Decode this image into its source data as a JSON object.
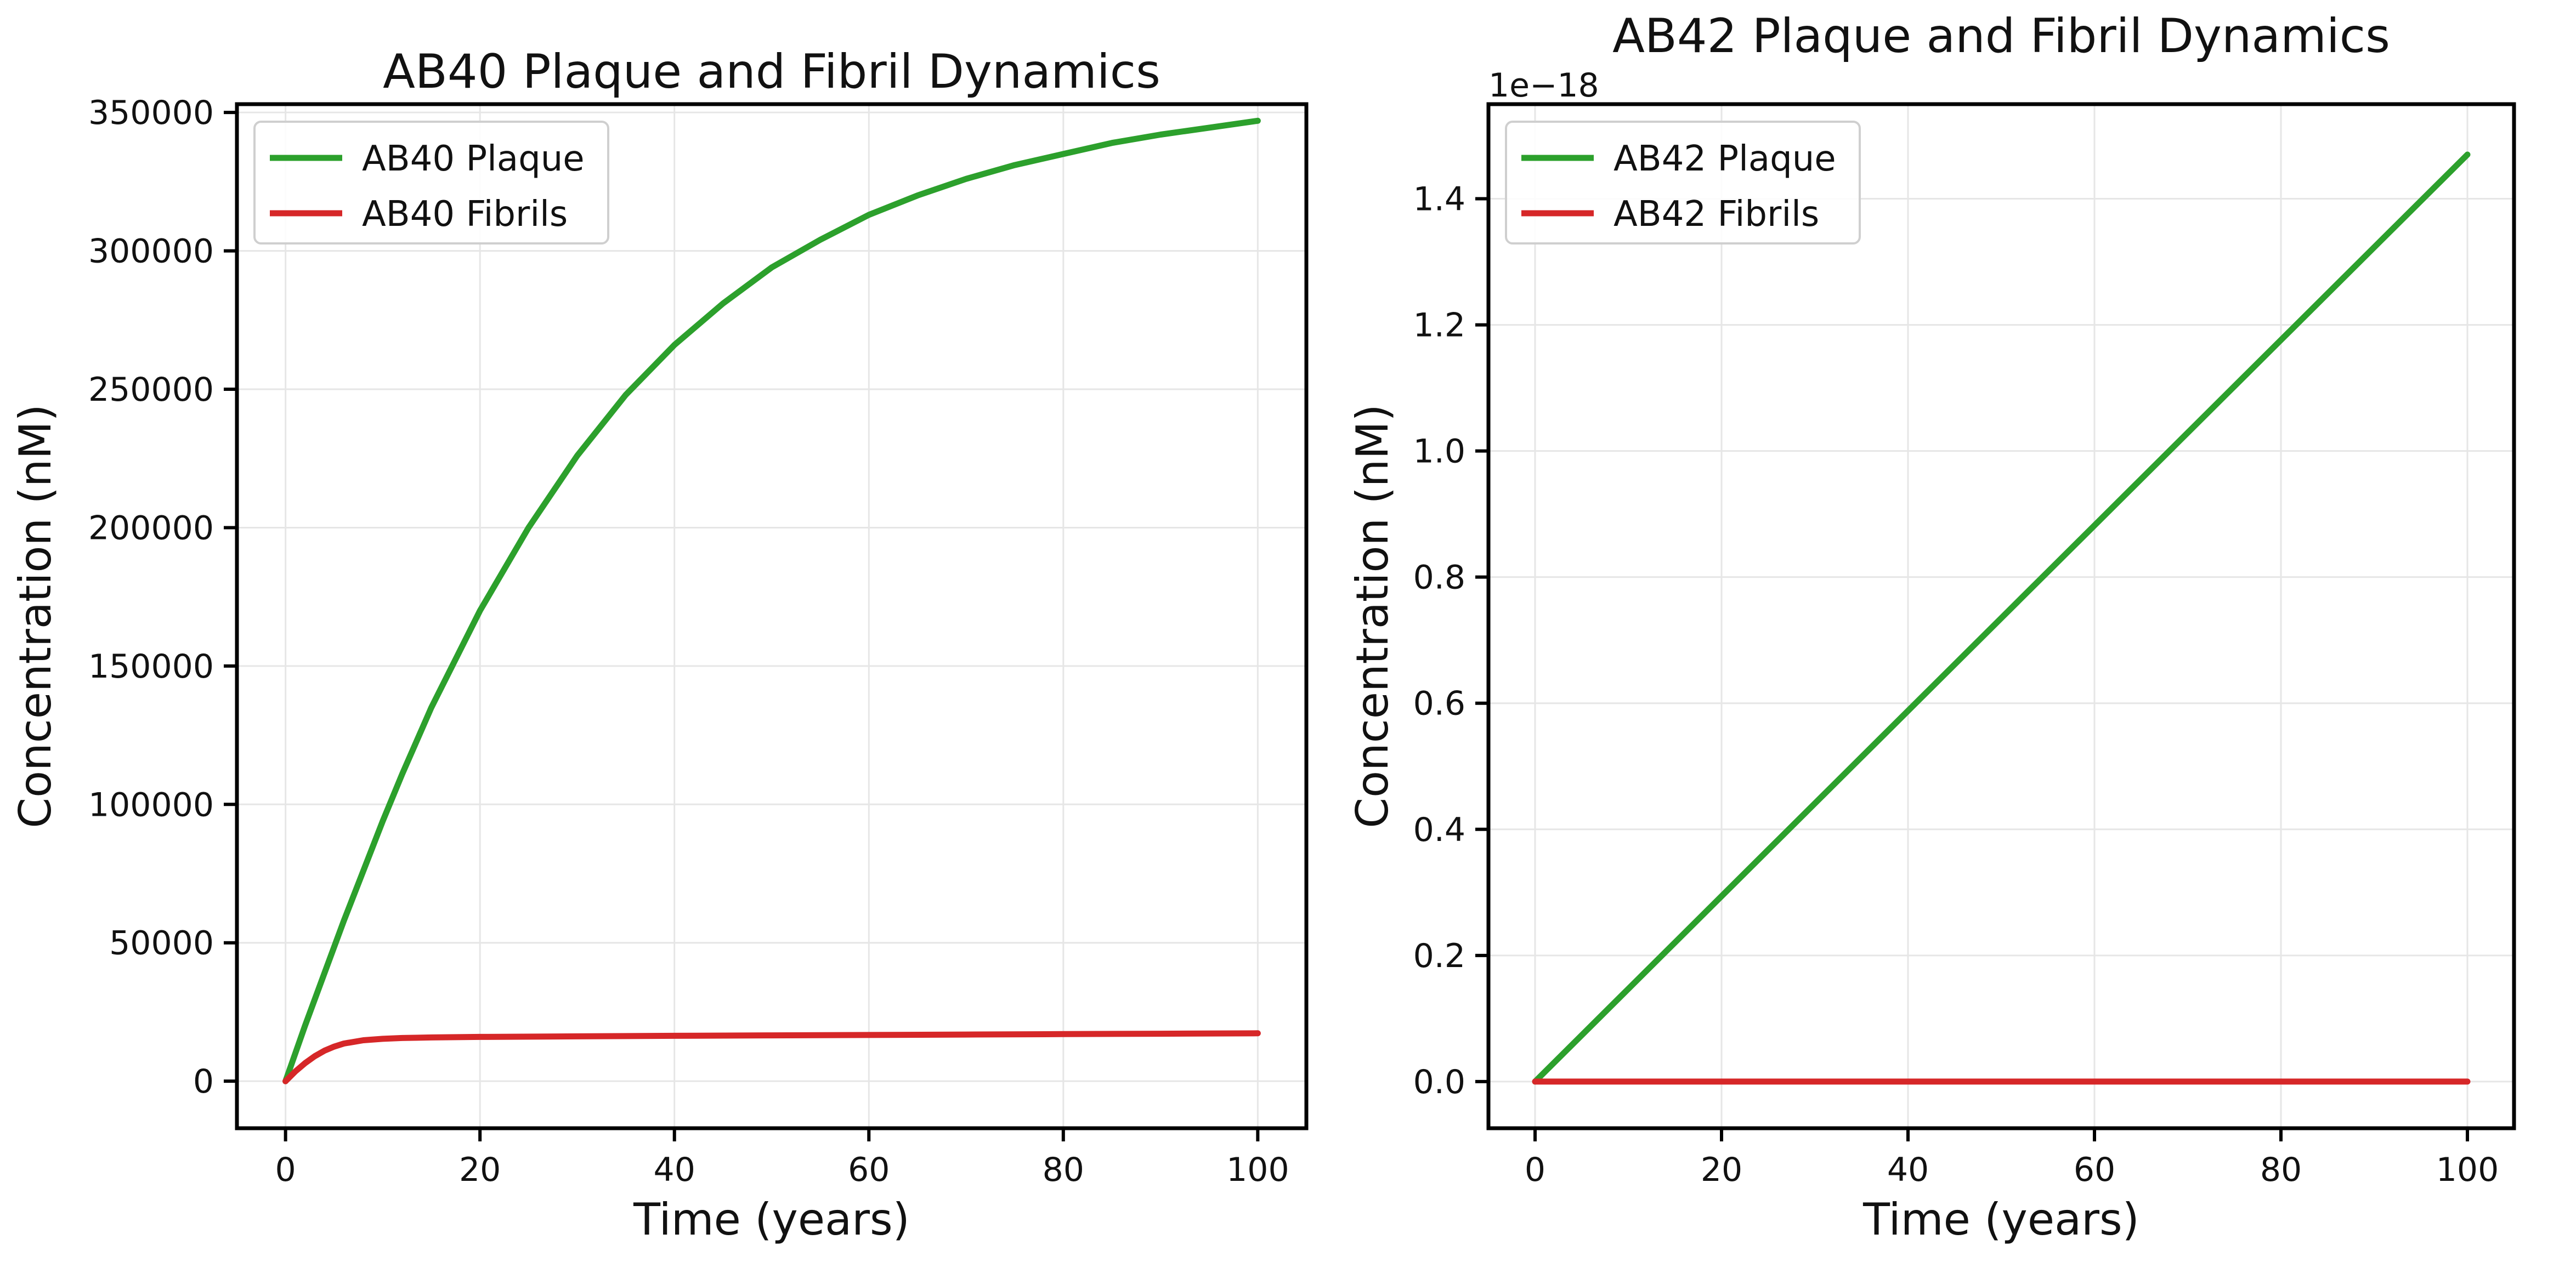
{
  "chart_data": [
    {
      "type": "line",
      "title": "AB40 Plaque and Fibril Dynamics",
      "xlabel": "Time (years)",
      "ylabel": "Concentration (nM)",
      "xlim": [
        -5,
        105
      ],
      "ylim": [
        -17000,
        353000
      ],
      "xticks": [
        0,
        20,
        40,
        60,
        80,
        100
      ],
      "yticks": [
        0,
        50000,
        100000,
        150000,
        200000,
        250000,
        300000,
        350000
      ],
      "ytick_labels": [
        "0",
        "50000",
        "100000",
        "150000",
        "200000",
        "250000",
        "300000",
        "350000"
      ],
      "offset_text": "",
      "grid": true,
      "legend": "upper-left",
      "series": [
        {
          "name": "AB40 Plaque",
          "color": "#2ca02c",
          "x": [
            0,
            2,
            4,
            6,
            8,
            10,
            12,
            15,
            20,
            25,
            30,
            35,
            40,
            45,
            50,
            55,
            60,
            65,
            70,
            75,
            80,
            85,
            90,
            95,
            100
          ],
          "y": [
            0,
            20000,
            39000,
            58000,
            76000,
            94000,
            111000,
            135000,
            170000,
            200000,
            226000,
            248000,
            266000,
            281000,
            294000,
            304000,
            313000,
            320000,
            326000,
            331000,
            335000,
            339000,
            342000,
            344500,
            347000
          ]
        },
        {
          "name": "AB40 Fibrils",
          "color": "#d62728",
          "x": [
            0,
            1,
            2,
            3,
            4,
            5,
            6,
            8,
            10,
            12,
            15,
            20,
            30,
            40,
            50,
            60,
            70,
            80,
            90,
            100
          ],
          "y": [
            0,
            3500,
            6500,
            9000,
            11000,
            12500,
            13600,
            14800,
            15300,
            15600,
            15800,
            16000,
            16200,
            16400,
            16550,
            16700,
            16850,
            17000,
            17150,
            17300
          ]
        }
      ]
    },
    {
      "type": "line",
      "title": "AB42 Plaque and Fibril Dynamics",
      "xlabel": "Time (years)",
      "ylabel": "Concentration (nM)",
      "xlim": [
        -5,
        105
      ],
      "ylim": [
        -0.074,
        1.55
      ],
      "xticks": [
        0,
        20,
        40,
        60,
        80,
        100
      ],
      "yticks": [
        0.0,
        0.2,
        0.4,
        0.6,
        0.8,
        1.0,
        1.2,
        1.4
      ],
      "ytick_labels": [
        "0.0",
        "0.2",
        "0.4",
        "0.6",
        "0.8",
        "1.0",
        "1.2",
        "1.4"
      ],
      "offset_text": "1e−18",
      "grid": true,
      "legend": "upper-left",
      "series": [
        {
          "name": "AB42 Plaque",
          "color": "#2ca02c",
          "x": [
            0,
            25,
            50,
            75,
            100
          ],
          "y": [
            0,
            0.3675,
            0.735,
            1.1025,
            1.47
          ]
        },
        {
          "name": "AB42 Fibrils",
          "color": "#d62728",
          "x": [
            0,
            25,
            50,
            75,
            100
          ],
          "y": [
            0,
            0,
            0,
            0,
            0
          ]
        }
      ]
    }
  ]
}
